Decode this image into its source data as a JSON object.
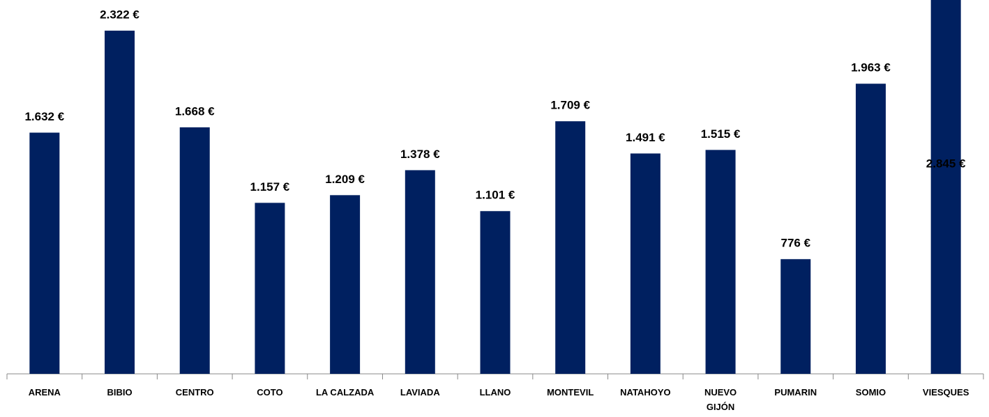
{
  "chart_data": {
    "type": "bar",
    "categories": [
      "ARENA",
      "BIBIO",
      "CENTRO",
      "COTO",
      "LA CALZADA",
      "LAVIADA",
      "LLANO",
      "MONTEVIL",
      "NATAHOYO",
      "NUEVO GIJÓN",
      "PUMARIN",
      "SOMIO",
      "VIESQUES"
    ],
    "values": [
      1632,
      2322,
      1668,
      1157,
      1209,
      1378,
      1101,
      1709,
      1491,
      1515,
      776,
      1963,
      2845
    ],
    "value_labels": [
      "1.632 €",
      "2.322 €",
      "1.668 €",
      "1.157 €",
      "1.209 €",
      "1.378 €",
      "1.101 €",
      "1.709 €",
      "1.491 €",
      "1.515 €",
      "776 €",
      "1.963 €",
      "2.845 €"
    ],
    "color": "#002060"
  }
}
